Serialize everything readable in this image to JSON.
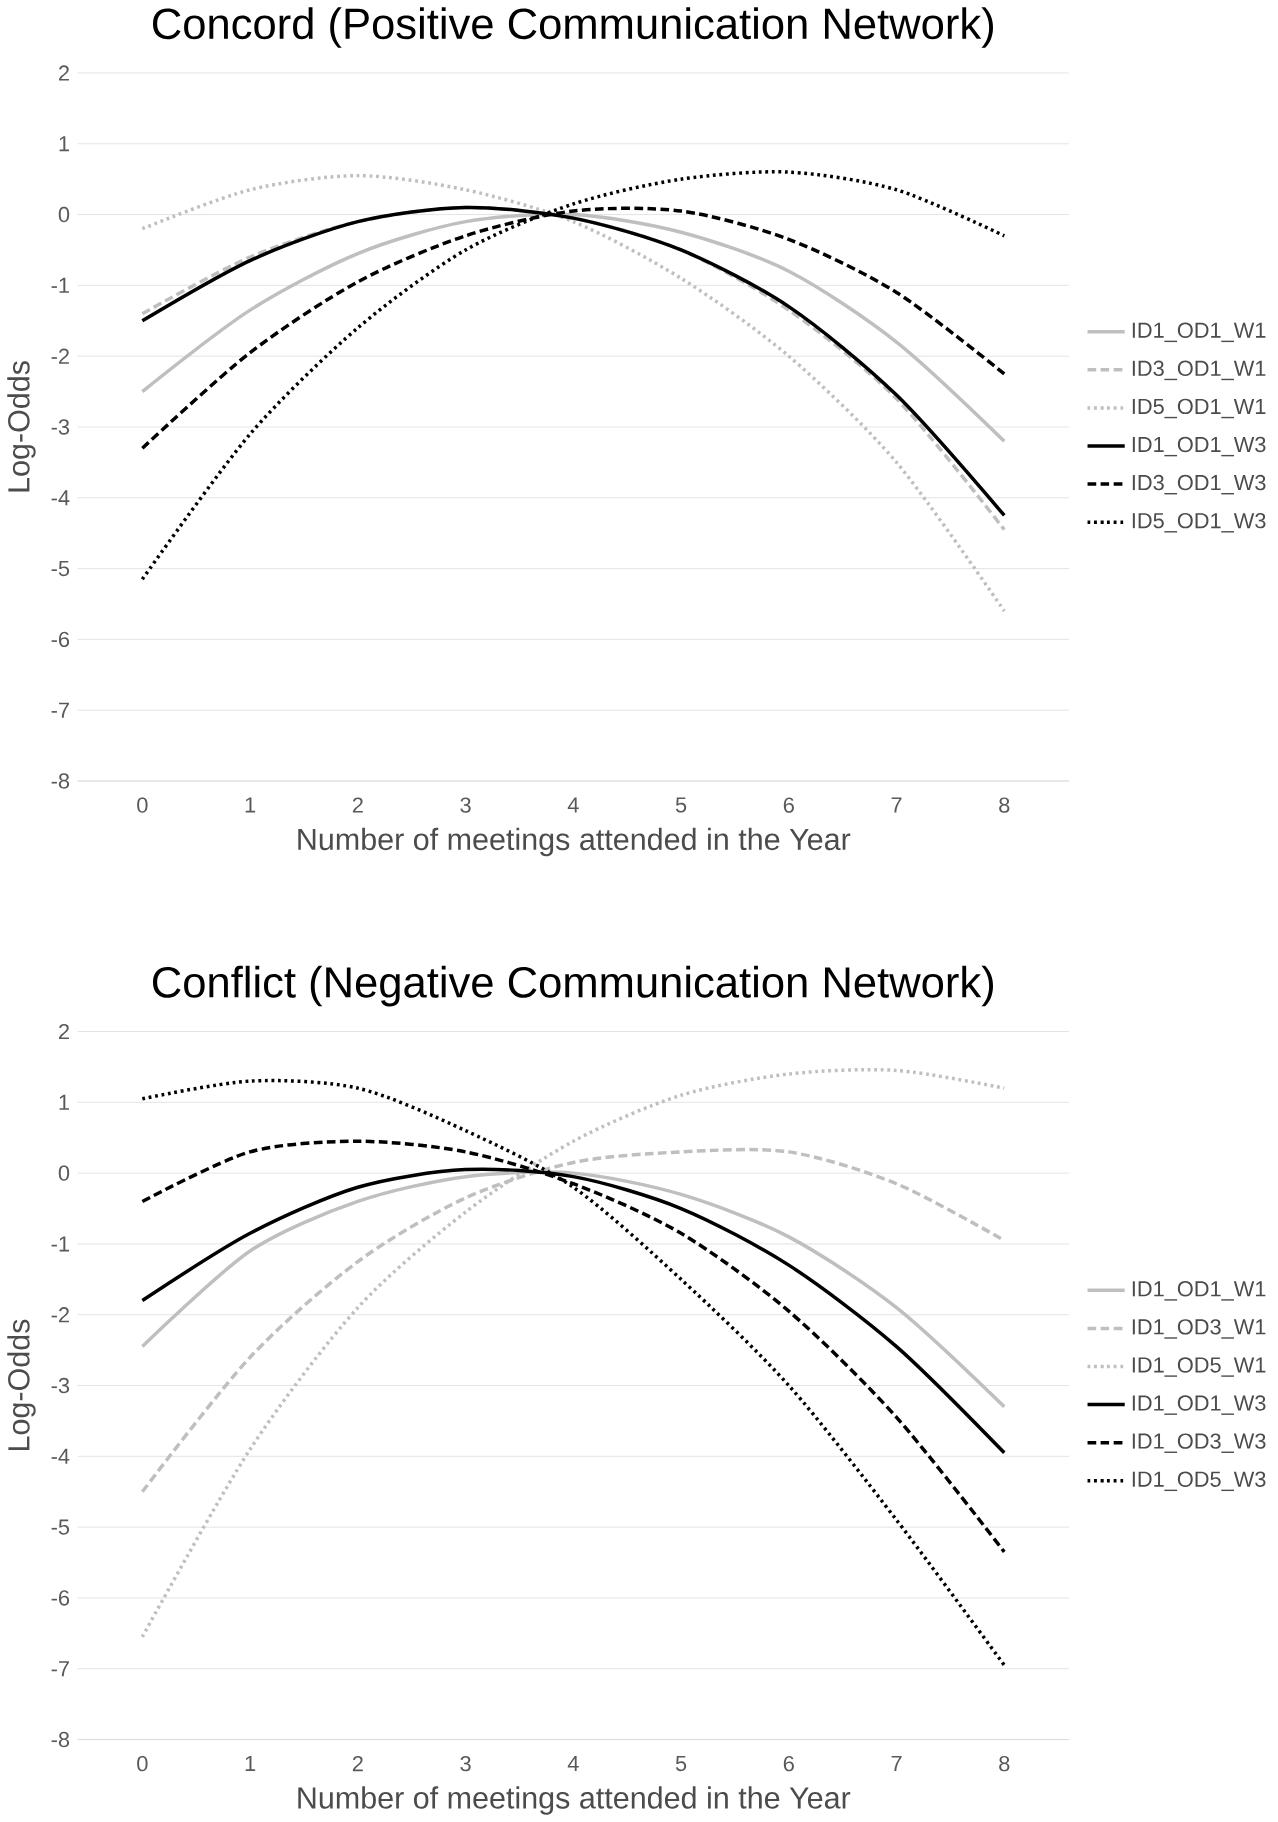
{
  "chart_data": [
    {
      "type": "line",
      "title": "Concord (Positive Communication Network)",
      "xlabel": "Number of meetings attended in the Year",
      "ylabel": "Log-Odds",
      "categories": [
        "0",
        "1",
        "2",
        "3",
        "4",
        "5",
        "6",
        "7",
        "8"
      ],
      "ylim": [
        -8,
        2
      ],
      "yticks": [
        -8,
        -7,
        -6,
        -5,
        -4,
        -3,
        -2,
        -1,
        0,
        1,
        2
      ],
      "grid": "y",
      "legend": "right",
      "marker": "none",
      "series": [
        {
          "name": "ID1_OD1_W1",
          "color": "#bfbfbf",
          "line_style": "solid",
          "values": [
            -2.5,
            -1.35,
            -0.55,
            -0.1,
            0,
            -0.25,
            -0.8,
            -1.8,
            -3.2
          ]
        },
        {
          "name": "ID3_OD1_W1",
          "color": "#bfbfbf",
          "line_style": "dashed",
          "values": [
            -1.4,
            -0.6,
            -0.1,
            0.1,
            -0.05,
            -0.5,
            -1.35,
            -2.6,
            -4.45
          ]
        },
        {
          "name": "ID5_OD1_W1",
          "color": "#bfbfbf",
          "line_style": "dotted",
          "values": [
            -0.2,
            0.35,
            0.55,
            0.35,
            -0.1,
            -0.9,
            -2.0,
            -3.5,
            -5.6
          ]
        },
        {
          "name": "ID1_OD1_W3",
          "color": "#000000",
          "line_style": "solid",
          "values": [
            -1.5,
            -0.65,
            -0.1,
            0.1,
            -0.05,
            -0.5,
            -1.3,
            -2.55,
            -4.25
          ]
        },
        {
          "name": "ID3_OD1_W3",
          "color": "#000000",
          "line_style": "dashed",
          "values": [
            -3.3,
            -1.95,
            -0.95,
            -0.3,
            0.05,
            0.05,
            -0.35,
            -1.1,
            -2.25
          ]
        },
        {
          "name": "ID5_OD1_W3",
          "color": "#000000",
          "line_style": "dotted",
          "values": [
            -5.15,
            -3.1,
            -1.6,
            -0.5,
            0.15,
            0.5,
            0.6,
            0.35,
            -0.3
          ]
        }
      ]
    },
    {
      "type": "line",
      "title": "Conflict (Negative Communication Network)",
      "xlabel": "Number of meetings attended in the Year",
      "ylabel": "Log-Odds",
      "categories": [
        "0",
        "1",
        "2",
        "3",
        "4",
        "5",
        "6",
        "7",
        "8"
      ],
      "ylim": [
        -8,
        2
      ],
      "yticks": [
        -8,
        -7,
        -6,
        -5,
        -4,
        -3,
        -2,
        -1,
        0,
        1,
        2
      ],
      "grid": "y",
      "legend": "right",
      "marker": "none",
      "series": [
        {
          "name": "ID1_OD1_W1",
          "color": "#bfbfbf",
          "line_style": "solid",
          "values": [
            -2.45,
            -1.1,
            -0.4,
            -0.05,
            0,
            -0.3,
            -0.9,
            -1.9,
            -3.3
          ]
        },
        {
          "name": "ID1_OD3_W1",
          "color": "#bfbfbf",
          "line_style": "dashed",
          "values": [
            -4.5,
            -2.6,
            -1.25,
            -0.35,
            0.15,
            0.3,
            0.3,
            -0.15,
            -0.95
          ]
        },
        {
          "name": "ID1_OD5_W1",
          "color": "#bfbfbf",
          "line_style": "dotted",
          "values": [
            -6.55,
            -3.9,
            -1.9,
            -0.55,
            0.45,
            1.1,
            1.4,
            1.45,
            1.2
          ]
        },
        {
          "name": "ID1_OD1_W3",
          "color": "#000000",
          "line_style": "solid",
          "values": [
            -1.8,
            -0.85,
            -0.2,
            0.05,
            -0.05,
            -0.5,
            -1.3,
            -2.45,
            -3.95
          ]
        },
        {
          "name": "ID1_OD3_W3",
          "color": "#000000",
          "line_style": "dashed",
          "values": [
            -0.4,
            0.3,
            0.45,
            0.3,
            -0.15,
            -0.85,
            -1.95,
            -3.45,
            -5.35
          ]
        },
        {
          "name": "ID1_OD5_W3",
          "color": "#000000",
          "line_style": "dotted",
          "values": [
            1.05,
            1.3,
            1.2,
            0.6,
            -0.2,
            -1.5,
            -3.0,
            -4.9,
            -6.95
          ]
        }
      ]
    }
  ]
}
